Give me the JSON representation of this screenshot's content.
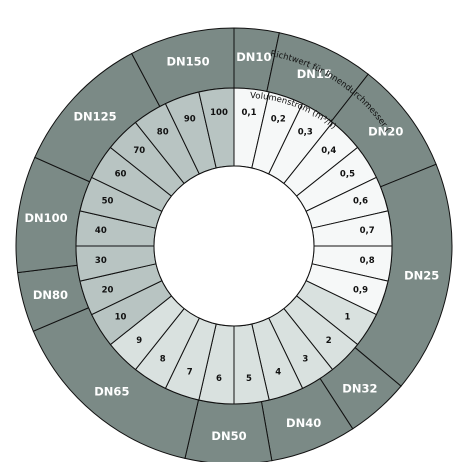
{
  "colors": {
    "outer_ring": "#7b8a86",
    "band_dark": "#b8c4c2",
    "band_mid": "#d9e1df",
    "band_light": "#f6f8f8",
    "separator": "#111111",
    "outer_text": "#ffffff",
    "inner_text": "#111111"
  },
  "diameter_ring": {
    "title": "Richtwert für Innendurchmesser (mm)",
    "segments": [
      {
        "label": "DN10",
        "end_deg": 12
      },
      {
        "label": "DN15",
        "end_deg": 38
      },
      {
        "label": "DN20",
        "end_deg": 68
      },
      {
        "label": "DN25",
        "end_deg": 130
      },
      {
        "label": "DN32",
        "end_deg": 147
      },
      {
        "label": "DN40",
        "end_deg": 170
      },
      {
        "label": "DN50",
        "end_deg": 193
      },
      {
        "label": "DN65",
        "end_deg": 247
      },
      {
        "label": "DN80",
        "end_deg": 263
      },
      {
        "label": "DN100",
        "end_deg": 294
      },
      {
        "label": "DN125",
        "end_deg": 332
      },
      {
        "label": "DN150",
        "end_deg": 360
      }
    ]
  },
  "flow_ring": {
    "title": "Volumenstrom (m³/h)",
    "values": [
      "0,1",
      "0,2",
      "0,3",
      "0,4",
      "0,5",
      "0,6",
      "0,7",
      "0,8",
      "0,9",
      "1",
      "2",
      "3",
      "4",
      "5",
      "6",
      "7",
      "8",
      "9",
      "10",
      "20",
      "30",
      "40",
      "50",
      "60",
      "70",
      "80",
      "90",
      "100"
    ],
    "band_boundaries": [
      9,
      18
    ]
  }
}
